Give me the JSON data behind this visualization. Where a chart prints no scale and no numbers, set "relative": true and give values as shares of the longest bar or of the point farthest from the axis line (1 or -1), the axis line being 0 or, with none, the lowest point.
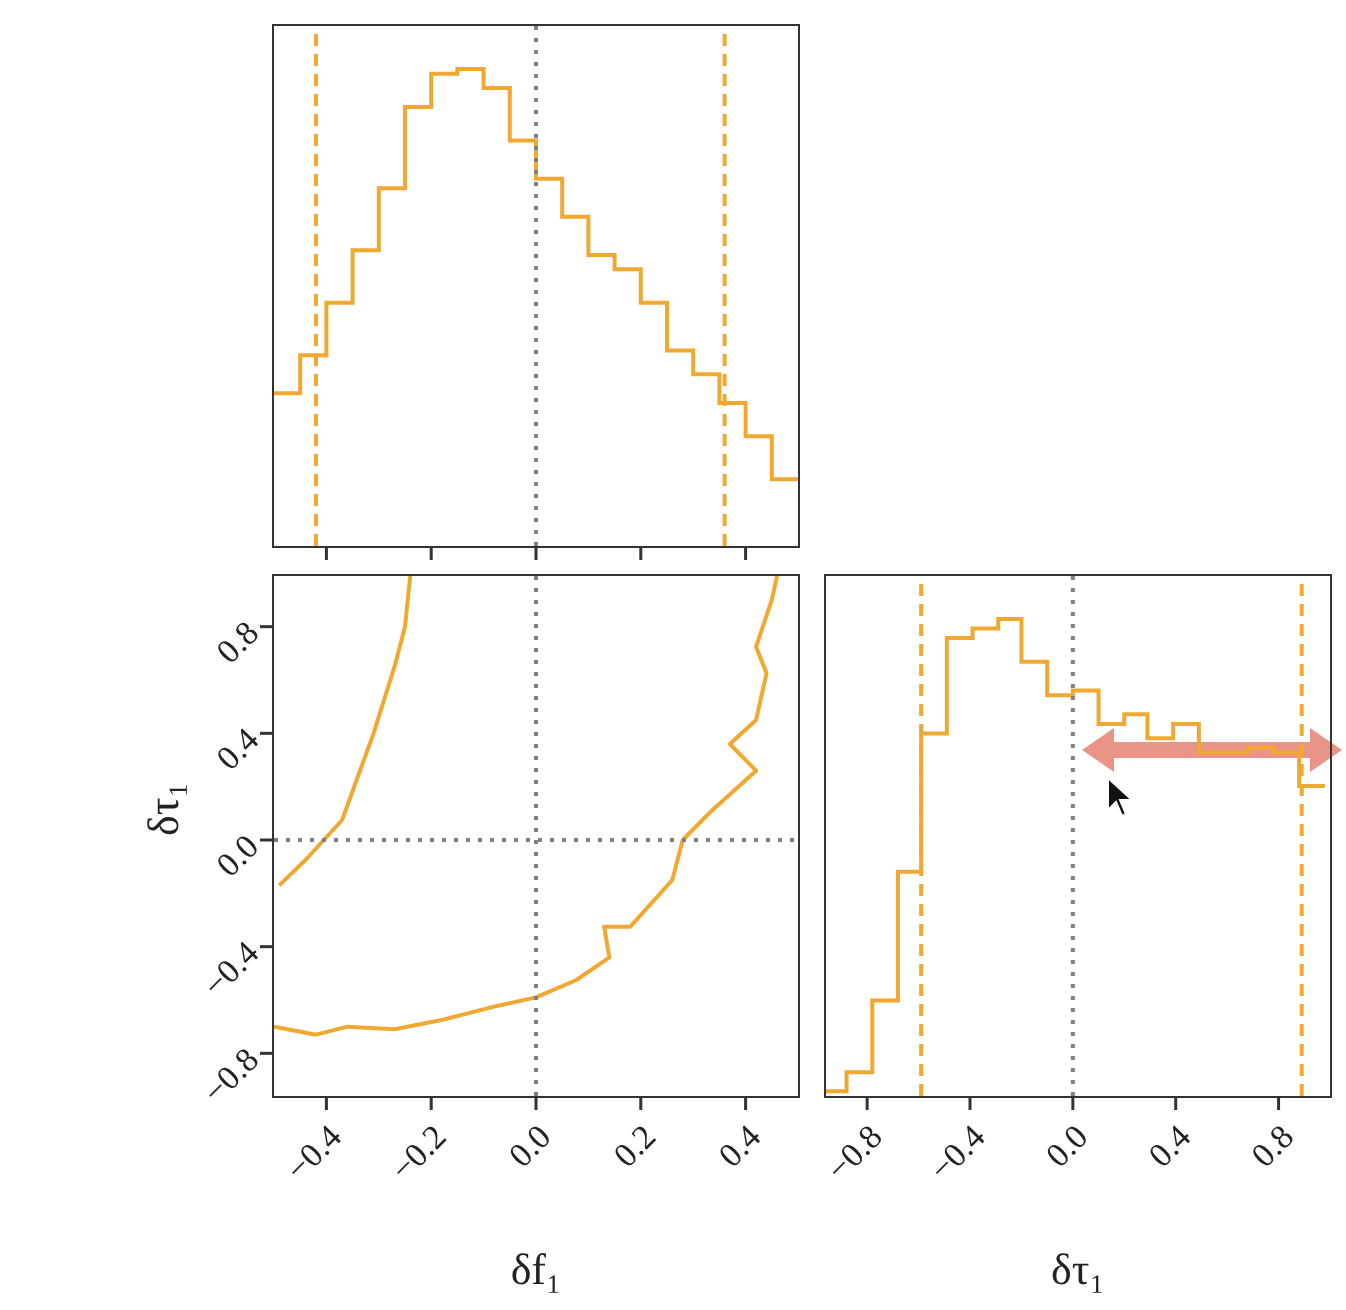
{
  "chart_data": [
    {
      "type": "step",
      "relative": true,
      "color": "#f0a830",
      "x": [
        -0.5,
        -0.45,
        -0.4,
        -0.35,
        -0.3,
        -0.25,
        -0.2,
        -0.15,
        -0.1,
        -0.05,
        0,
        0.05,
        0.1,
        0.15,
        0.2,
        0.25,
        0.3,
        0.35,
        0.4,
        0.45,
        0.5
      ],
      "values": [
        0.32,
        0.4,
        0.51,
        0.62,
        0.75,
        0.92,
        0.99,
        1,
        0.96,
        0.85,
        0.77,
        0.69,
        0.61,
        0.58,
        0.51,
        0.41,
        0.36,
        0.3,
        0.23,
        0.14,
        0.14
      ],
      "xlim": [
        -0.5,
        0.5
      ],
      "xticks": [
        {
          "value": -0.4,
          "label": null
        },
        {
          "value": -0.2,
          "label": null
        },
        {
          "value": 0,
          "label": null
        },
        {
          "value": 0.2,
          "label": null
        },
        {
          "value": 0.4,
          "label": null
        }
      ],
      "tick_labels": false,
      "ref_lines": [
        {
          "axis": "x",
          "value": -0.42,
          "color": "#f0a830",
          "line_style": "dashed"
        },
        {
          "axis": "x",
          "value": 0.36,
          "color": "#f0a830",
          "line_style": "dashed"
        },
        {
          "axis": "x",
          "value": 0,
          "color": "#808080",
          "line_style": "dotted"
        }
      ]
    },
    {
      "type": "line",
      "xlabel": "δf₁",
      "ylabel": "δτ₁",
      "xlim": [
        -0.5,
        0.5
      ],
      "ylim": [
        -0.96,
        0.99
      ],
      "xticks": [
        {
          "value": -0.4,
          "label": "−0.4"
        },
        {
          "value": -0.2,
          "label": "−0.2"
        },
        {
          "value": 0,
          "label": "0.0"
        },
        {
          "value": 0.2,
          "label": "0.2"
        },
        {
          "value": 0.4,
          "label": "0.4"
        }
      ],
      "yticks": [
        {
          "value": -0.8,
          "label": "−0.8"
        },
        {
          "value": -0.4,
          "label": "−0.4"
        },
        {
          "value": 0,
          "label": "0.0"
        },
        {
          "value": 0.4,
          "label": "0.4"
        },
        {
          "value": 0.8,
          "label": "0.8"
        }
      ],
      "series": [
        {
          "color": "#f0a830",
          "x": [
            -0.24,
            -0.25,
            -0.27,
            -0.31,
            -0.37,
            -0.44,
            -0.49
          ],
          "values": [
            0.99,
            0.8,
            0.65,
            0.4,
            0.075,
            -0.075,
            -0.17
          ]
        },
        {
          "color": "#f0a830",
          "x": [
            -0.5,
            -0.42,
            -0.36,
            -0.27,
            -0.18,
            -0.08,
            0,
            0.077,
            0.14,
            0.13,
            0.18,
            0.26,
            0.28,
            0.33,
            0.42,
            0.37,
            0.42,
            0.44,
            0.42,
            0.45,
            0.46
          ],
          "values": [
            -0.7,
            -0.73,
            -0.7,
            -0.71,
            -0.675,
            -0.625,
            -0.59,
            -0.525,
            -0.44,
            -0.325,
            -0.325,
            -0.15,
            0,
            0.1,
            0.26,
            0.36,
            0.45,
            0.625,
            0.725,
            0.9,
            0.99
          ]
        }
      ],
      "ref_lines": [
        {
          "axis": "x",
          "value": 0,
          "color": "#808080",
          "line_style": "dotted"
        },
        {
          "axis": "y",
          "value": 0,
          "color": "#808080",
          "line_style": "dotted"
        }
      ]
    },
    {
      "type": "step",
      "relative": true,
      "color": "#f0a830",
      "xlabel": "δτ₁",
      "x": [
        -0.96,
        -0.88,
        -0.78,
        -0.68,
        -0.59,
        -0.49,
        -0.39,
        -0.29,
        -0.2,
        -0.1,
        0,
        0.1,
        0.2,
        0.29,
        0.39,
        0.49,
        0.59,
        0.68,
        0.78,
        0.88,
        0.98
      ],
      "values": [
        0.01,
        0.05,
        0.2,
        0.47,
        0.76,
        0.96,
        0.98,
        1,
        0.91,
        0.84,
        0.85,
        0.78,
        0.8,
        0.75,
        0.78,
        0.72,
        0.72,
        0.73,
        0.72,
        0.65,
        0.65
      ],
      "xlim": [
        -0.96,
        1.0
      ],
      "xticks": [
        {
          "value": -0.8,
          "label": "−0.8"
        },
        {
          "value": -0.4,
          "label": "−0.4"
        },
        {
          "value": 0,
          "label": "0.0"
        },
        {
          "value": 0.4,
          "label": "0.4"
        },
        {
          "value": 0.8,
          "label": "0.8"
        }
      ],
      "tick_labels": "x",
      "ref_lines": [
        {
          "axis": "x",
          "value": -0.59,
          "color": "#f0a830",
          "line_style": "dashed"
        },
        {
          "axis": "x",
          "value": 0.89,
          "color": "#f0a830",
          "line_style": "dashed"
        },
        {
          "axis": "x",
          "value": 0,
          "color": "#808080",
          "line_style": "dotted"
        }
      ]
    }
  ]
}
